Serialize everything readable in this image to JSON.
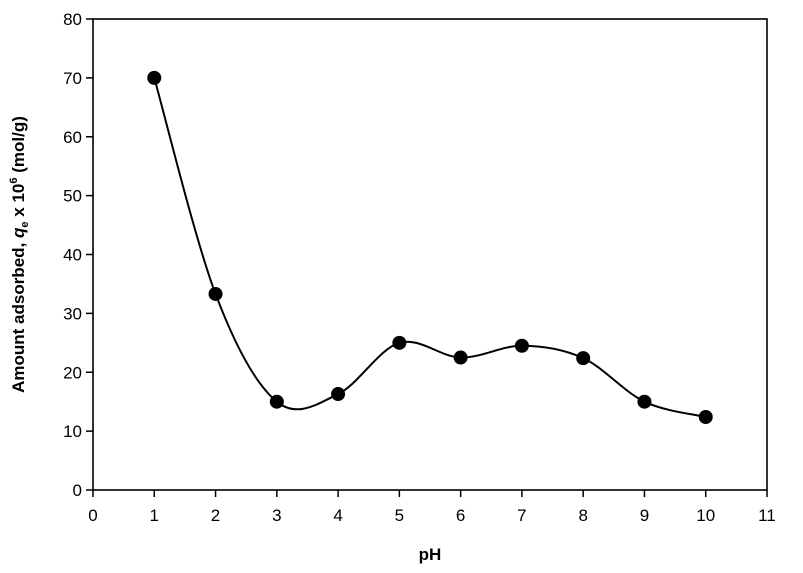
{
  "chart_data": {
    "type": "scatter",
    "xlabel": "pH",
    "ylabel": {
      "prefix": "Amount adsorbed, ",
      "symbol": "q",
      "subscript": "e",
      "middle": " x 10",
      "superscript": "6",
      "suffix": " (mol/g)"
    },
    "xlim": [
      0,
      11
    ],
    "ylim": [
      0,
      80
    ],
    "xticks": [
      0,
      1,
      2,
      3,
      4,
      5,
      6,
      7,
      8,
      9,
      10,
      11
    ],
    "yticks": [
      0,
      10,
      20,
      30,
      40,
      50,
      60,
      70,
      80
    ],
    "grid": false,
    "legend": "none",
    "fit_curve": "smooth spline through points",
    "marker_color": "#000000",
    "series": [
      {
        "x": [
          1,
          2,
          3,
          4,
          5,
          6,
          7,
          8,
          9,
          10
        ],
        "y": [
          70,
          33.3,
          15,
          16.3,
          25,
          22.5,
          24.5,
          22.4,
          15,
          12.4
        ]
      }
    ]
  }
}
